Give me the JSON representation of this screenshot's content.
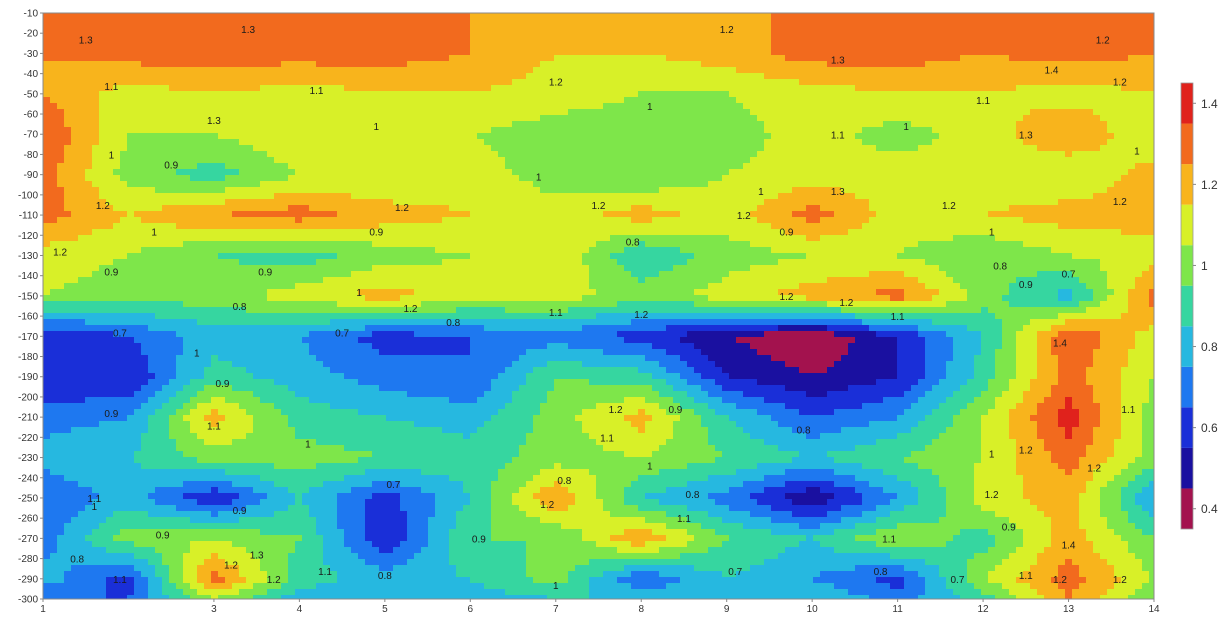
{
  "chart_data": {
    "type": "heatmap",
    "subtype": "filled-contour",
    "title": "",
    "xlabel": "",
    "ylabel": "",
    "xlim": [
      1,
      14
    ],
    "ylim": [
      -300,
      -10
    ],
    "x_ticks": [
      "1",
      "3",
      "4",
      "5",
      "6",
      "7",
      "8",
      "9",
      "10",
      "11",
      "12",
      "13",
      "14"
    ],
    "x_tick_values": [
      1,
      3,
      4,
      5,
      6,
      7,
      8,
      9,
      10,
      11,
      12,
      13,
      14
    ],
    "y_ticks": [
      "-10",
      "-20",
      "-30",
      "-40",
      "-50",
      "-60",
      "-70",
      "-80",
      "-90",
      "-100",
      "-110",
      "-120",
      "-130",
      "-140",
      "-150",
      "-160",
      "-170",
      "-180",
      "-190",
      "-200",
      "-210",
      "-220",
      "-230",
      "-240",
      "-250",
      "-260",
      "-270",
      "-280",
      "-290",
      "-300"
    ],
    "colorbar": {
      "ticks": [
        "1.4",
        "1.2",
        "1",
        "0.8",
        "0.6",
        "0.4"
      ],
      "tick_values": [
        1.4,
        1.2,
        1.0,
        0.8,
        0.6,
        0.4
      ],
      "range": [
        0.35,
        1.45
      ],
      "levels": [
        0.35,
        0.45,
        0.55,
        0.65,
        0.75,
        0.85,
        0.95,
        1.05,
        1.15,
        1.25,
        1.35,
        1.45
      ],
      "colors": [
        "#a3124e",
        "#1a10a0",
        "#1a2fd8",
        "#1e78f0",
        "#26b8e0",
        "#36d6a0",
        "#7ee64a",
        "#d8f028",
        "#f8b41c",
        "#f26a1e",
        "#e0221c"
      ]
    },
    "grid": [
      {
        "depth": -10,
        "values": [
          1.25,
          1.25,
          1.3,
          1.3,
          1.25,
          1.25,
          1.2,
          1.2,
          1.2,
          1.3,
          1.3,
          1.25,
          1.25,
          1.25
        ]
      },
      {
        "depth": -30,
        "values": [
          1.25,
          1.3,
          1.3,
          1.3,
          1.3,
          1.25,
          1.15,
          1.15,
          1.2,
          1.3,
          1.3,
          1.25,
          1.3,
          1.25
        ]
      },
      {
        "depth": -50,
        "values": [
          1.25,
          1.1,
          1.15,
          1.1,
          1.15,
          1.15,
          1.1,
          1.05,
          1.05,
          1.1,
          1.15,
          1.15,
          1.1,
          1.15
        ]
      },
      {
        "depth": -70,
        "values": [
          1.35,
          1.05,
          1.05,
          1.15,
          1.05,
          1.05,
          1.0,
          1.0,
          1.0,
          1.1,
          1.0,
          1.1,
          1.25,
          1.05
        ]
      },
      {
        "depth": -90,
        "values": [
          1.3,
          1.0,
          0.9,
          1.05,
          1.05,
          1.1,
          1.0,
          0.95,
          1.05,
          1.1,
          1.1,
          1.1,
          1.05,
          1.2
        ]
      },
      {
        "depth": -110,
        "values": [
          1.3,
          1.15,
          1.25,
          1.3,
          1.2,
          1.15,
          1.1,
          1.2,
          1.1,
          1.3,
          1.1,
          1.15,
          1.2,
          1.2
        ]
      },
      {
        "depth": -130,
        "values": [
          1.1,
          1.05,
          0.95,
          0.9,
          1.0,
          1.05,
          1.15,
          0.85,
          1.0,
          1.05,
          1.05,
          0.95,
          1.05,
          1.1
        ]
      },
      {
        "depth": -150,
        "values": [
          1.05,
          1.0,
          1.0,
          1.1,
          1.2,
          1.1,
          1.1,
          1.0,
          1.1,
          1.2,
          1.3,
          1.0,
          0.8,
          1.3
        ]
      },
      {
        "depth": -170,
        "values": [
          0.55,
          0.65,
          0.8,
          0.75,
          0.6,
          0.65,
          0.7,
          0.6,
          0.45,
          0.35,
          0.55,
          0.85,
          1.35,
          1.1
        ]
      },
      {
        "depth": -190,
        "values": [
          0.55,
          0.55,
          0.9,
          0.8,
          0.7,
          0.65,
          0.95,
          0.9,
          0.55,
          0.45,
          0.55,
          0.9,
          1.3,
          1.05
        ]
      },
      {
        "depth": -210,
        "values": [
          0.7,
          0.75,
          1.2,
          0.9,
          0.85,
          0.8,
          1.0,
          1.2,
          0.85,
          0.65,
          0.75,
          1.05,
          1.4,
          1.0
        ]
      },
      {
        "depth": -230,
        "values": [
          0.8,
          0.85,
          1.0,
          1.0,
          0.95,
          0.9,
          1.0,
          1.05,
          0.95,
          0.85,
          0.95,
          1.05,
          1.3,
          1.0
        ]
      },
      {
        "depth": -250,
        "values": [
          0.65,
          0.8,
          0.55,
          0.85,
          0.6,
          0.85,
          1.25,
          0.85,
          0.7,
          0.45,
          0.75,
          1.1,
          1.2,
          0.75
        ]
      },
      {
        "depth": -270,
        "values": [
          0.7,
          1.0,
          1.05,
          0.95,
          0.55,
          0.95,
          0.95,
          1.25,
          0.95,
          0.85,
          1.05,
          0.9,
          1.2,
          0.95
        ]
      },
      {
        "depth": -290,
        "values": [
          0.8,
          0.6,
          1.3,
          0.9,
          0.8,
          0.85,
          1.0,
          0.65,
          0.85,
          0.75,
          0.6,
          1.05,
          1.3,
          1.05
        ]
      },
      {
        "depth": -300,
        "values": [
          0.65,
          0.65,
          1.05,
          0.8,
          0.8,
          0.8,
          0.85,
          0.85,
          0.75,
          0.85,
          0.7,
          0.9,
          1.25,
          0.95
        ]
      }
    ],
    "contour_labels": [
      {
        "text": "1.3",
        "x": 1.5,
        "y": -25
      },
      {
        "text": "1.3",
        "x": 3.4,
        "y": -20
      },
      {
        "text": "1.2",
        "x": 9.0,
        "y": -20
      },
      {
        "text": "1.3",
        "x": 10.3,
        "y": -35
      },
      {
        "text": "1.2",
        "x": 13.4,
        "y": -25
      },
      {
        "text": "1.4",
        "x": 12.8,
        "y": -40
      },
      {
        "text": "1.1",
        "x": 1.8,
        "y": -48
      },
      {
        "text": "1.1",
        "x": 4.2,
        "y": -50
      },
      {
        "text": "1.2",
        "x": 7.0,
        "y": -46
      },
      {
        "text": "1.1",
        "x": 12.0,
        "y": -55
      },
      {
        "text": "1.2",
        "x": 13.6,
        "y": -46
      },
      {
        "text": "1.3",
        "x": 3.0,
        "y": -65
      },
      {
        "text": "1",
        "x": 4.9,
        "y": -68
      },
      {
        "text": "1",
        "x": 8.1,
        "y": -58
      },
      {
        "text": "1.1",
        "x": 10.3,
        "y": -72
      },
      {
        "text": "1",
        "x": 11.1,
        "y": -68
      },
      {
        "text": "1.3",
        "x": 12.5,
        "y": -72
      },
      {
        "text": "1",
        "x": 1.8,
        "y": -82
      },
      {
        "text": "0.9",
        "x": 2.5,
        "y": -87
      },
      {
        "text": "1",
        "x": 6.8,
        "y": -93
      },
      {
        "text": "1",
        "x": 9.4,
        "y": -100
      },
      {
        "text": "1",
        "x": 13.8,
        "y": -80
      },
      {
        "text": "1.2",
        "x": 1.7,
        "y": -107
      },
      {
        "text": "1.2",
        "x": 5.2,
        "y": -108
      },
      {
        "text": "1.2",
        "x": 7.5,
        "y": -107
      },
      {
        "text": "1.2",
        "x": 9.2,
        "y": -112
      },
      {
        "text": "1.3",
        "x": 10.3,
        "y": -100
      },
      {
        "text": "1.2",
        "x": 11.6,
        "y": -107
      },
      {
        "text": "1.2",
        "x": 13.6,
        "y": -105
      },
      {
        "text": "1",
        "x": 2.3,
        "y": -120
      },
      {
        "text": "0.9",
        "x": 4.9,
        "y": -120
      },
      {
        "text": "0.8",
        "x": 7.9,
        "y": -125
      },
      {
        "text": "0.9",
        "x": 9.7,
        "y": -120
      },
      {
        "text": "1",
        "x": 12.1,
        "y": -120
      },
      {
        "text": "1.2",
        "x": 1.2,
        "y": -130
      },
      {
        "text": "0.9",
        "x": 1.8,
        "y": -140
      },
      {
        "text": "0.9",
        "x": 3.6,
        "y": -140
      },
      {
        "text": "0.8",
        "x": 12.2,
        "y": -137
      },
      {
        "text": "0.7",
        "x": 13.0,
        "y": -141
      },
      {
        "text": "0.9",
        "x": 12.5,
        "y": -146
      },
      {
        "text": "1",
        "x": 4.7,
        "y": -150
      },
      {
        "text": "1.2",
        "x": 5.3,
        "y": -158
      },
      {
        "text": "0.8",
        "x": 3.3,
        "y": -157
      },
      {
        "text": "0.8",
        "x": 5.8,
        "y": -165
      },
      {
        "text": "1.1",
        "x": 7.0,
        "y": -160
      },
      {
        "text": "1.2",
        "x": 8.0,
        "y": -161
      },
      {
        "text": "1.2",
        "x": 9.7,
        "y": -152
      },
      {
        "text": "1.2",
        "x": 10.4,
        "y": -155
      },
      {
        "text": "1.1",
        "x": 11.0,
        "y": -162
      },
      {
        "text": "1.4",
        "x": 12.9,
        "y": -175
      },
      {
        "text": "0.7",
        "x": 1.9,
        "y": -170
      },
      {
        "text": "0.7",
        "x": 4.5,
        "y": -170
      },
      {
        "text": "1",
        "x": 2.8,
        "y": -180
      },
      {
        "text": "0.9",
        "x": 3.1,
        "y": -195
      },
      {
        "text": "0.9",
        "x": 1.8,
        "y": -210
      },
      {
        "text": "1.1",
        "x": 3.0,
        "y": -216
      },
      {
        "text": "1.2",
        "x": 7.7,
        "y": -208
      },
      {
        "text": "0.9",
        "x": 8.4,
        "y": -208
      },
      {
        "text": "1.1",
        "x": 7.6,
        "y": -222
      },
      {
        "text": "1",
        "x": 4.1,
        "y": -225
      },
      {
        "text": "0.8",
        "x": 9.9,
        "y": -218
      },
      {
        "text": "1.1",
        "x": 13.7,
        "y": -208
      },
      {
        "text": "1.2",
        "x": 12.5,
        "y": -228
      },
      {
        "text": "1",
        "x": 12.1,
        "y": -230
      },
      {
        "text": "1.2",
        "x": 13.3,
        "y": -237
      },
      {
        "text": "1",
        "x": 8.1,
        "y": -236
      },
      {
        "text": "0.8",
        "x": 7.1,
        "y": -243
      },
      {
        "text": "0.7",
        "x": 5.1,
        "y": -245
      },
      {
        "text": "1.1",
        "x": 1.6,
        "y": -252
      },
      {
        "text": "1",
        "x": 1.6,
        "y": -256
      },
      {
        "text": "0.9",
        "x": 3.3,
        "y": -258
      },
      {
        "text": "1.2",
        "x": 6.9,
        "y": -255
      },
      {
        "text": "0.8",
        "x": 8.6,
        "y": -250
      },
      {
        "text": "1.1",
        "x": 8.5,
        "y": -262
      },
      {
        "text": "1.2",
        "x": 12.1,
        "y": -250
      },
      {
        "text": "0.9",
        "x": 2.4,
        "y": -270
      },
      {
        "text": "0.9",
        "x": 6.1,
        "y": -272
      },
      {
        "text": "1.1",
        "x": 10.9,
        "y": -272
      },
      {
        "text": "0.9",
        "x": 12.3,
        "y": -266
      },
      {
        "text": "1.3",
        "x": 3.5,
        "y": -280
      },
      {
        "text": "1.2",
        "x": 3.2,
        "y": -285
      },
      {
        "text": "1.4",
        "x": 13.0,
        "y": -275
      },
      {
        "text": "0.8",
        "x": 1.4,
        "y": -282
      },
      {
        "text": "1.1",
        "x": 1.9,
        "y": -292
      },
      {
        "text": "1.1",
        "x": 4.3,
        "y": -288
      },
      {
        "text": "1.2",
        "x": 3.7,
        "y": -292
      },
      {
        "text": "0.8",
        "x": 5.0,
        "y": -290
      },
      {
        "text": "1",
        "x": 7.0,
        "y": -295
      },
      {
        "text": "0.7",
        "x": 9.1,
        "y": -288
      },
      {
        "text": "0.8",
        "x": 10.8,
        "y": -288
      },
      {
        "text": "0.7",
        "x": 11.7,
        "y": -292
      },
      {
        "text": "1.1",
        "x": 12.5,
        "y": -290
      },
      {
        "text": "1.2",
        "x": 12.9,
        "y": -292
      },
      {
        "text": "1.2",
        "x": 13.6,
        "y": -292
      }
    ]
  }
}
